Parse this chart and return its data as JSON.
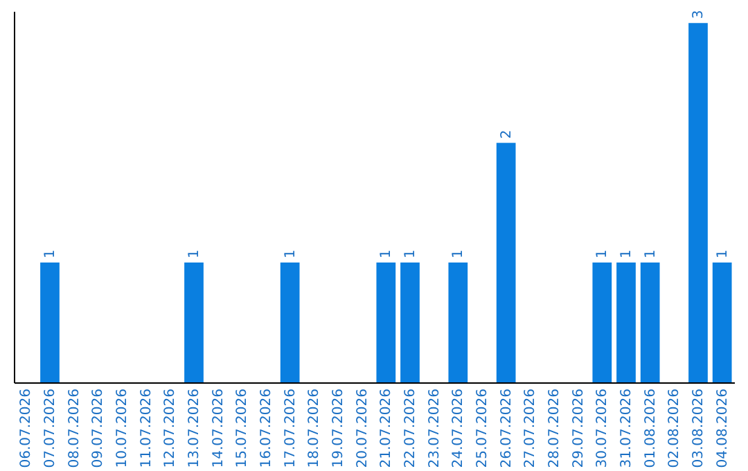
{
  "chart_data": {
    "type": "bar",
    "categories": [
      "06.07.2026",
      "07.07.2026",
      "08.07.2026",
      "09.07.2026",
      "10.07.2026",
      "11.07.2026",
      "12.07.2026",
      "13.07.2026",
      "14.07.2026",
      "15.07.2026",
      "16.07.2026",
      "17.07.2026",
      "18.07.2026",
      "19.07.2026",
      "20.07.2026",
      "21.07.2026",
      "22.07.2026",
      "23.07.2026",
      "24.07.2026",
      "25.07.2026",
      "26.07.2026",
      "27.07.2026",
      "28.07.2026",
      "29.07.2026",
      "30.07.2026",
      "31.07.2026",
      "01.08.2026",
      "02.08.2026",
      "03.08.2026",
      "04.08.2026"
    ],
    "values": [
      0,
      1,
      0,
      0,
      0,
      0,
      0,
      1,
      0,
      0,
      0,
      1,
      0,
      0,
      0,
      1,
      1,
      0,
      1,
      0,
      2,
      0,
      0,
      0,
      1,
      1,
      1,
      0,
      3,
      1
    ],
    "value_labels": [
      null,
      "1",
      null,
      null,
      null,
      null,
      null,
      "1",
      null,
      null,
      null,
      "1",
      null,
      null,
      null,
      "1",
      "1",
      null,
      "1",
      null,
      "2",
      null,
      null,
      null,
      "1",
      "1",
      "1",
      null,
      "3",
      "1"
    ],
    "color": "#0a7fe0",
    "ylim": [
      0,
      3.1
    ],
    "tick_labels": "x",
    "grid": false
  }
}
